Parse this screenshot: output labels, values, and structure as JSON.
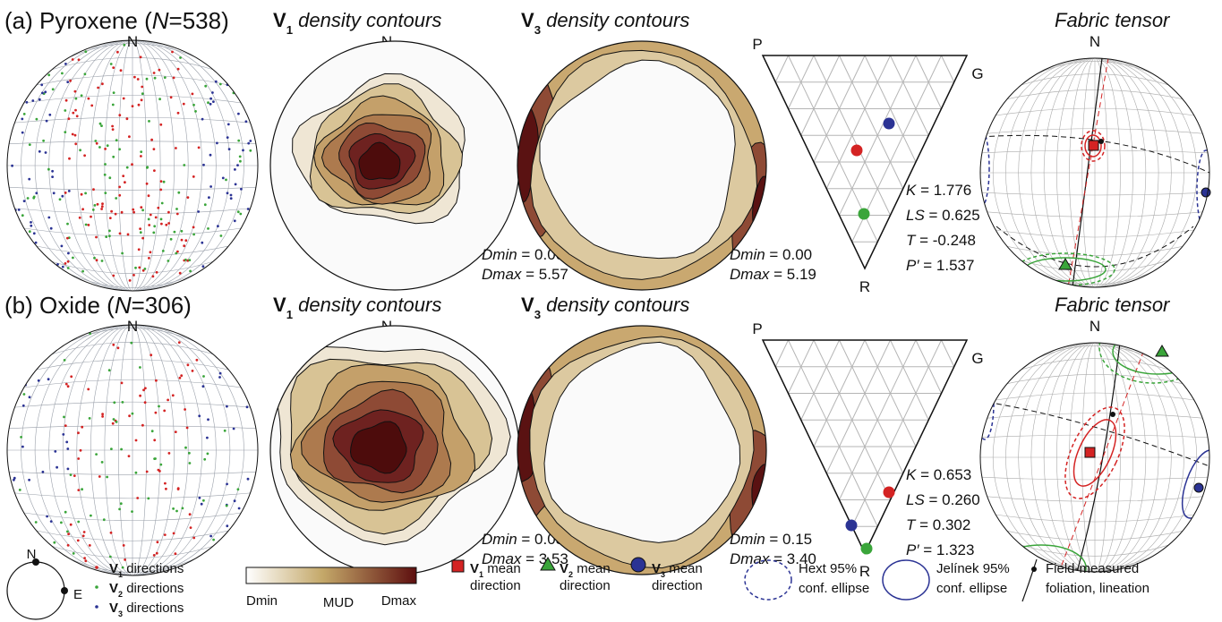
{
  "panels": [
    {
      "label": {
        "prefix": "(a) Pyroxene (",
        "n": "N",
        "suffix": "=538)"
      },
      "north": "N",
      "v1_title": {
        "v": "V",
        "sub": "1",
        "text": " density contours"
      },
      "v3_title": {
        "v": "V",
        "sub": "3",
        "text": " density contours"
      },
      "v1_stats": {
        "dmin": "Dmin",
        "dmin_value": " = 0.00",
        "dmax": "Dmax",
        "dmax_value": " = 5.57"
      },
      "v3_stats": {
        "dmin": "Dmin",
        "dmin_value": " = 0.00",
        "dmax": "Dmax",
        "dmax_value": " = 5.19"
      },
      "ternary": {
        "p": "P",
        "g": "G",
        "r": "R"
      },
      "params": [
        {
          "name": "K",
          "value": " = 1.776"
        },
        {
          "name": "LS",
          "value": " = 0.625"
        },
        {
          "name": "T",
          "value": " =  -0.248"
        },
        {
          "name": "P′",
          "value": " = 1.537"
        }
      ],
      "fabric_title": "Fabric tensor"
    },
    {
      "label": {
        "prefix": "(b) Oxide (",
        "n": "N",
        "suffix": "=306)"
      },
      "north": "N",
      "v1_title": {
        "v": "V",
        "sub": "1",
        "text": " density contours"
      },
      "v3_title": {
        "v": "V",
        "sub": "3",
        "text": " density contours"
      },
      "v1_stats": {
        "dmin": "Dmin",
        "dmin_value": " = 0.05",
        "dmax": "Dmax",
        "dmax_value": " = 3.53"
      },
      "v3_stats": {
        "dmin": "Dmin",
        "dmin_value": " = 0.15",
        "dmax": "Dmax",
        "dmax_value": " = 3.40"
      },
      "ternary": {
        "p": "P",
        "g": "G",
        "r": "R"
      },
      "params": [
        {
          "name": "K",
          "value": " = 0.653"
        },
        {
          "name": "LS",
          "value": " = 0.260"
        },
        {
          "name": "T",
          "value": " = 0.302"
        },
        {
          "name": "P′",
          "value": " = 1.323"
        }
      ],
      "fabric_title": "Fabric tensor"
    }
  ],
  "legend": {
    "north": "N",
    "east": "E",
    "directions": [
      {
        "v": "V",
        "sub": "1",
        "text": " directions"
      },
      {
        "v": "V",
        "sub": "2",
        "text": " directions"
      },
      {
        "v": "V",
        "sub": "3",
        "text": " directions"
      }
    ],
    "colorbar": {
      "min": "Dmin",
      "mid": "MUD",
      "max": "Dmax"
    },
    "means": [
      {
        "v": "V",
        "sub": "1",
        "line1": " mean",
        "line2": "direction"
      },
      {
        "v": "V",
        "sub": "2",
        "line1": " mean",
        "line2": "direction"
      },
      {
        "v": "V",
        "sub": "3",
        "line1": " mean",
        "line2": "direction"
      }
    ],
    "hext": {
      "line1": "Hext 95%",
      "line2": "conf. ellipse"
    },
    "jelinek": {
      "line1": "Jelínek 95%",
      "line2": "conf. ellipse"
    },
    "field": {
      "line1": "Field-measured",
      "line2": "foliation, lineation"
    }
  }
}
